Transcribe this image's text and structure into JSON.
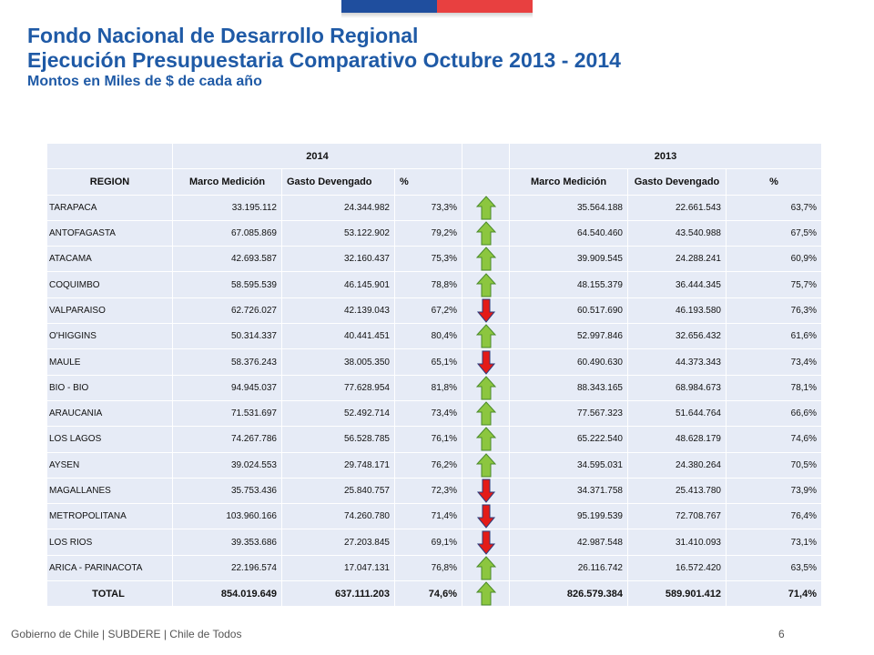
{
  "title": {
    "line1": "Fondo Nacional de Desarrollo Regional",
    "line2": "Ejecución Presupuestaria Comparativo Octubre 2013 - 2014",
    "line3": "Montos en Miles de $ de cada año"
  },
  "colors": {
    "title": "#1f5aa6",
    "up": "#8cc63f",
    "down": "#e41b17",
    "table_bg": "#e6ebf6"
  },
  "table": {
    "year_2014": "2014",
    "year_2013": "2013",
    "headers": [
      "REGION",
      "Marco Medición",
      "Gasto Devengado",
      "%",
      "Marco Medición",
      "Gasto Devengado",
      "%"
    ],
    "rows": [
      {
        "region": "TARAPACA",
        "marco_2014": "33.195.112",
        "gasto_2014": "24.344.982",
        "pct_2014": "73,3%",
        "marco_2013": "35.564.188",
        "gasto_2013": "22.661.543",
        "pct_2013": "63,7%",
        "trend": "up"
      },
      {
        "region": "ANTOFAGASTA",
        "marco_2014": "67.085.869",
        "gasto_2014": "53.122.902",
        "pct_2014": "79,2%",
        "marco_2013": "64.540.460",
        "gasto_2013": "43.540.988",
        "pct_2013": "67,5%",
        "trend": "up"
      },
      {
        "region": "ATACAMA",
        "marco_2014": "42.693.587",
        "gasto_2014": "32.160.437",
        "pct_2014": "75,3%",
        "marco_2013": "39.909.545",
        "gasto_2013": "24.288.241",
        "pct_2013": "60,9%",
        "trend": "up"
      },
      {
        "region": "COQUIMBO",
        "marco_2014": "58.595.539",
        "gasto_2014": "46.145.901",
        "pct_2014": "78,8%",
        "marco_2013": "48.155.379",
        "gasto_2013": "36.444.345",
        "pct_2013": "75,7%",
        "trend": "up"
      },
      {
        "region": "VALPARAISO",
        "marco_2014": "62.726.027",
        "gasto_2014": "42.139.043",
        "pct_2014": "67,2%",
        "marco_2013": "60.517.690",
        "gasto_2013": "46.193.580",
        "pct_2013": "76,3%",
        "trend": "down"
      },
      {
        "region": "O'HIGGINS",
        "marco_2014": "50.314.337",
        "gasto_2014": "40.441.451",
        "pct_2014": "80,4%",
        "marco_2013": "52.997.846",
        "gasto_2013": "32.656.432",
        "pct_2013": "61,6%",
        "trend": "up"
      },
      {
        "region": "MAULE",
        "marco_2014": "58.376.243",
        "gasto_2014": "38.005.350",
        "pct_2014": "65,1%",
        "marco_2013": "60.490.630",
        "gasto_2013": "44.373.343",
        "pct_2013": "73,4%",
        "trend": "down"
      },
      {
        "region": "BIO - BIO",
        "marco_2014": "94.945.037",
        "gasto_2014": "77.628.954",
        "pct_2014": "81,8%",
        "marco_2013": "88.343.165",
        "gasto_2013": "68.984.673",
        "pct_2013": "78,1%",
        "trend": "up"
      },
      {
        "region": "ARAUCANIA",
        "marco_2014": "71.531.697",
        "gasto_2014": "52.492.714",
        "pct_2014": "73,4%",
        "marco_2013": "77.567.323",
        "gasto_2013": "51.644.764",
        "pct_2013": "66,6%",
        "trend": "up"
      },
      {
        "region": "LOS LAGOS",
        "marco_2014": "74.267.786",
        "gasto_2014": "56.528.785",
        "pct_2014": "76,1%",
        "marco_2013": "65.222.540",
        "gasto_2013": "48.628.179",
        "pct_2013": "74,6%",
        "trend": "up"
      },
      {
        "region": "AYSEN",
        "marco_2014": "39.024.553",
        "gasto_2014": "29.748.171",
        "pct_2014": "76,2%",
        "marco_2013": "34.595.031",
        "gasto_2013": "24.380.264",
        "pct_2013": "70,5%",
        "trend": "up"
      },
      {
        "region": "MAGALLANES",
        "marco_2014": "35.753.436",
        "gasto_2014": "25.840.757",
        "pct_2014": "72,3%",
        "marco_2013": "34.371.758",
        "gasto_2013": "25.413.780",
        "pct_2013": "73,9%",
        "trend": "down"
      },
      {
        "region": "METROPOLITANA",
        "marco_2014": "103.960.166",
        "gasto_2014": "74.260.780",
        "pct_2014": "71,4%",
        "marco_2013": "95.199.539",
        "gasto_2013": "72.708.767",
        "pct_2013": "76,4%",
        "trend": "down"
      },
      {
        "region": "LOS RIOS",
        "marco_2014": "39.353.686",
        "gasto_2014": "27.203.845",
        "pct_2014": "69,1%",
        "marco_2013": "42.987.548",
        "gasto_2013": "31.410.093",
        "pct_2013": "73,1%",
        "trend": "down"
      },
      {
        "region": "ARICA - PARINACOTA",
        "marco_2014": "22.196.574",
        "gasto_2014": "17.047.131",
        "pct_2014": "76,8%",
        "marco_2013": "26.116.742",
        "gasto_2013": "16.572.420",
        "pct_2013": "63,5%",
        "trend": "up"
      }
    ],
    "total": {
      "label": "TOTAL",
      "marco_2014": "854.019.649",
      "gasto_2014": "637.111.203",
      "pct_2014": "74,6%",
      "marco_2013": "826.579.384",
      "gasto_2013": "589.901.412",
      "pct_2013": "71,4%",
      "trend": "up"
    }
  },
  "footer": {
    "text": "Gobierno de Chile | SUBDERE | Chile de Todos",
    "page": "6"
  }
}
